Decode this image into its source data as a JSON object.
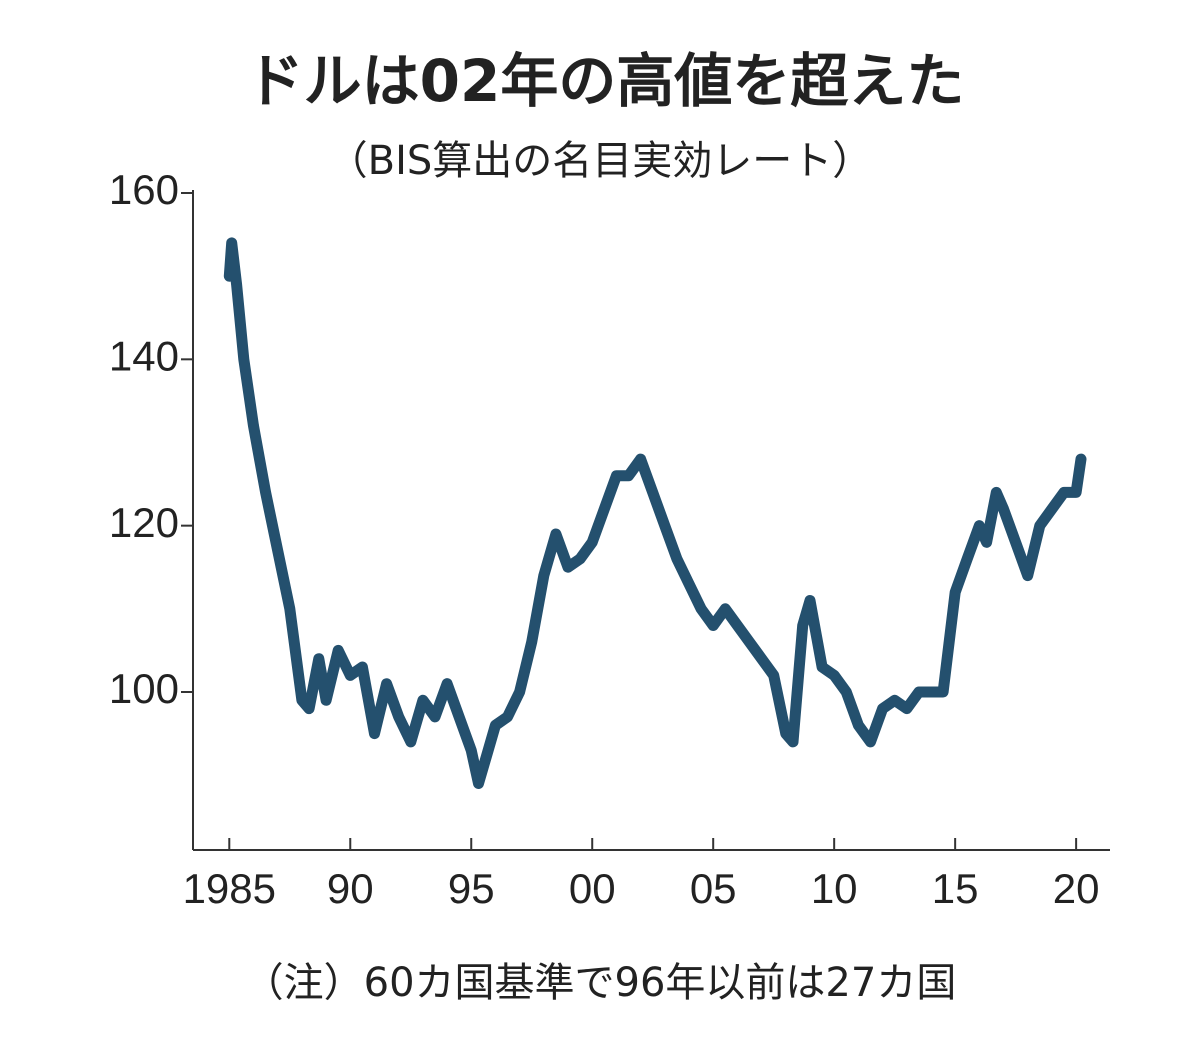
{
  "chart_data": {
    "type": "line",
    "title": "ドルは02年の高値を超えた",
    "subtitle": "（BIS算出の名目実効レート）",
    "note": "（注）60カ国基準で96年以前は27カ国",
    "xlim": [
      1983.5,
      2021.4
    ],
    "ylim": [
      81,
      160
    ],
    "xticks": [
      1985,
      {
        "value": 1990,
        "label": "90"
      },
      {
        "value": 1995,
        "label": "95"
      },
      {
        "value": 2000,
        "label": "00"
      },
      {
        "value": 2005,
        "label": "05"
      },
      {
        "value": 2010,
        "label": "10"
      },
      {
        "value": 2015,
        "label": "15"
      },
      {
        "value": 2020,
        "label": "20"
      }
    ],
    "yticks": [
      100,
      120,
      140,
      160
    ],
    "grid": false,
    "series": [
      {
        "color": "#24506e",
        "x": [
          1985.0,
          1985.1,
          1985.3,
          1985.6,
          1986.0,
          1986.5,
          1987.0,
          1987.5,
          1988.0,
          1988.3,
          1988.7,
          1989.0,
          1989.5,
          1990.0,
          1990.5,
          1991.0,
          1991.5,
          1992.0,
          1992.5,
          1993.0,
          1993.5,
          1994.0,
          1994.5,
          1995.0,
          1995.3,
          1995.7,
          1996.0,
          1996.5,
          1997.0,
          1997.5,
          1998.0,
          1998.5,
          1999.0,
          1999.5,
          2000.0,
          2000.5,
          2001.0,
          2001.5,
          2002.0,
          2002.5,
          2003.0,
          2003.5,
          2004.0,
          2004.5,
          2005.0,
          2005.5,
          2006.0,
          2006.5,
          2007.0,
          2007.5,
          2008.0,
          2008.3,
          2008.7,
          2009.0,
          2009.5,
          2010.0,
          2010.5,
          2011.0,
          2011.5,
          2012.0,
          2012.5,
          2013.0,
          2013.5,
          2014.0,
          2014.5,
          2015.0,
          2015.5,
          2016.0,
          2016.3,
          2016.7,
          2017.0,
          2017.5,
          2018.0,
          2018.5,
          2019.0,
          2019.5,
          2020.0,
          2020.2
        ],
        "values": [
          150,
          154,
          149,
          140,
          132,
          124,
          117,
          110,
          99,
          98,
          104,
          99,
          105,
          102,
          103,
          95,
          101,
          97,
          94,
          99,
          97,
          101,
          97,
          93,
          89,
          93,
          96,
          97,
          100,
          106,
          114,
          119,
          115,
          116,
          118,
          122,
          126,
          126,
          128,
          124,
          120,
          116,
          113,
          110,
          108,
          110,
          108,
          106,
          104,
          102,
          95,
          94,
          108,
          111,
          103,
          102,
          100,
          96,
          94,
          98,
          99,
          98,
          100,
          100,
          100,
          112,
          116,
          120,
          118,
          124,
          122,
          118,
          114,
          120,
          122,
          124,
          124,
          128
        ]
      }
    ]
  }
}
